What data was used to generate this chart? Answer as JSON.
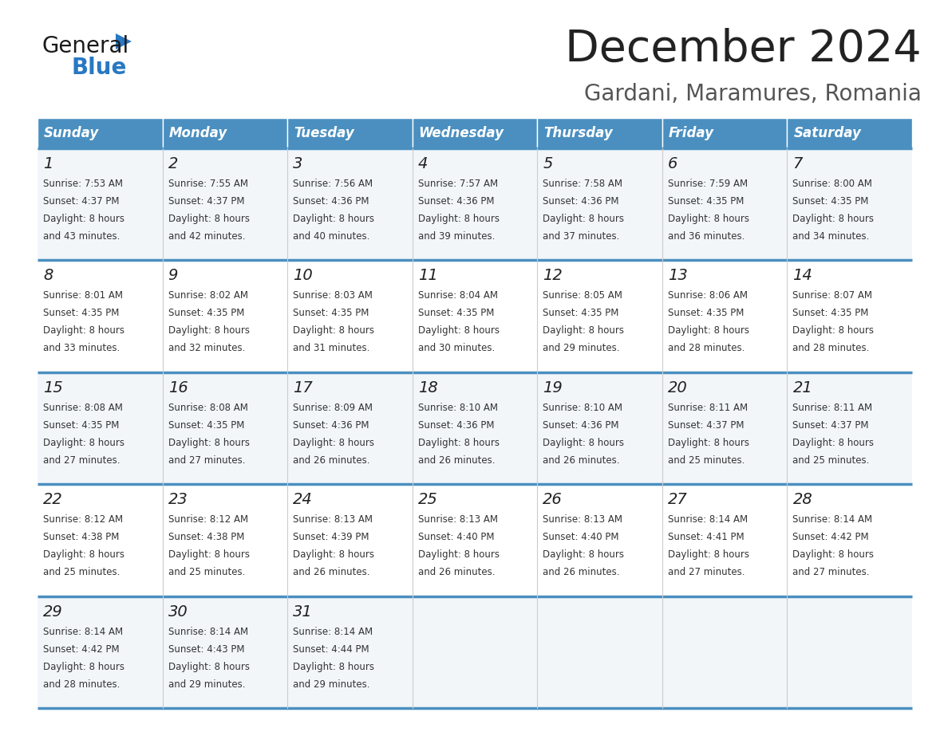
{
  "title": "December 2024",
  "subtitle": "Gardani, Maramures, Romania",
  "header_bg": "#4a8fc0",
  "header_text_color": "#ffffff",
  "row_bg_light": "#f2f6f9",
  "row_bg_white": "#ffffff",
  "border_color": "#4a8fc0",
  "day_headers": [
    "Sunday",
    "Monday",
    "Tuesday",
    "Wednesday",
    "Thursday",
    "Friday",
    "Saturday"
  ],
  "days": [
    {
      "day": 1,
      "col": 0,
      "row": 0,
      "sunrise": "7:53 AM",
      "sunset": "4:37 PM",
      "dl_min": 43
    },
    {
      "day": 2,
      "col": 1,
      "row": 0,
      "sunrise": "7:55 AM",
      "sunset": "4:37 PM",
      "dl_min": 42
    },
    {
      "day": 3,
      "col": 2,
      "row": 0,
      "sunrise": "7:56 AM",
      "sunset": "4:36 PM",
      "dl_min": 40
    },
    {
      "day": 4,
      "col": 3,
      "row": 0,
      "sunrise": "7:57 AM",
      "sunset": "4:36 PM",
      "dl_min": 39
    },
    {
      "day": 5,
      "col": 4,
      "row": 0,
      "sunrise": "7:58 AM",
      "sunset": "4:36 PM",
      "dl_min": 37
    },
    {
      "day": 6,
      "col": 5,
      "row": 0,
      "sunrise": "7:59 AM",
      "sunset": "4:35 PM",
      "dl_min": 36
    },
    {
      "day": 7,
      "col": 6,
      "row": 0,
      "sunrise": "8:00 AM",
      "sunset": "4:35 PM",
      "dl_min": 34
    },
    {
      "day": 8,
      "col": 0,
      "row": 1,
      "sunrise": "8:01 AM",
      "sunset": "4:35 PM",
      "dl_min": 33
    },
    {
      "day": 9,
      "col": 1,
      "row": 1,
      "sunrise": "8:02 AM",
      "sunset": "4:35 PM",
      "dl_min": 32
    },
    {
      "day": 10,
      "col": 2,
      "row": 1,
      "sunrise": "8:03 AM",
      "sunset": "4:35 PM",
      "dl_min": 31
    },
    {
      "day": 11,
      "col": 3,
      "row": 1,
      "sunrise": "8:04 AM",
      "sunset": "4:35 PM",
      "dl_min": 30
    },
    {
      "day": 12,
      "col": 4,
      "row": 1,
      "sunrise": "8:05 AM",
      "sunset": "4:35 PM",
      "dl_min": 29
    },
    {
      "day": 13,
      "col": 5,
      "row": 1,
      "sunrise": "8:06 AM",
      "sunset": "4:35 PM",
      "dl_min": 28
    },
    {
      "day": 14,
      "col": 6,
      "row": 1,
      "sunrise": "8:07 AM",
      "sunset": "4:35 PM",
      "dl_min": 28
    },
    {
      "day": 15,
      "col": 0,
      "row": 2,
      "sunrise": "8:08 AM",
      "sunset": "4:35 PM",
      "dl_min": 27
    },
    {
      "day": 16,
      "col": 1,
      "row": 2,
      "sunrise": "8:08 AM",
      "sunset": "4:35 PM",
      "dl_min": 27
    },
    {
      "day": 17,
      "col": 2,
      "row": 2,
      "sunrise": "8:09 AM",
      "sunset": "4:36 PM",
      "dl_min": 26
    },
    {
      "day": 18,
      "col": 3,
      "row": 2,
      "sunrise": "8:10 AM",
      "sunset": "4:36 PM",
      "dl_min": 26
    },
    {
      "day": 19,
      "col": 4,
      "row": 2,
      "sunrise": "8:10 AM",
      "sunset": "4:36 PM",
      "dl_min": 26
    },
    {
      "day": 20,
      "col": 5,
      "row": 2,
      "sunrise": "8:11 AM",
      "sunset": "4:37 PM",
      "dl_min": 25
    },
    {
      "day": 21,
      "col": 6,
      "row": 2,
      "sunrise": "8:11 AM",
      "sunset": "4:37 PM",
      "dl_min": 25
    },
    {
      "day": 22,
      "col": 0,
      "row": 3,
      "sunrise": "8:12 AM",
      "sunset": "4:38 PM",
      "dl_min": 25
    },
    {
      "day": 23,
      "col": 1,
      "row": 3,
      "sunrise": "8:12 AM",
      "sunset": "4:38 PM",
      "dl_min": 25
    },
    {
      "day": 24,
      "col": 2,
      "row": 3,
      "sunrise": "8:13 AM",
      "sunset": "4:39 PM",
      "dl_min": 26
    },
    {
      "day": 25,
      "col": 3,
      "row": 3,
      "sunrise": "8:13 AM",
      "sunset": "4:40 PM",
      "dl_min": 26
    },
    {
      "day": 26,
      "col": 4,
      "row": 3,
      "sunrise": "8:13 AM",
      "sunset": "4:40 PM",
      "dl_min": 26
    },
    {
      "day": 27,
      "col": 5,
      "row": 3,
      "sunrise": "8:14 AM",
      "sunset": "4:41 PM",
      "dl_min": 27
    },
    {
      "day": 28,
      "col": 6,
      "row": 3,
      "sunrise": "8:14 AM",
      "sunset": "4:42 PM",
      "dl_min": 27
    },
    {
      "day": 29,
      "col": 0,
      "row": 4,
      "sunrise": "8:14 AM",
      "sunset": "4:42 PM",
      "dl_min": 28
    },
    {
      "day": 30,
      "col": 1,
      "row": 4,
      "sunrise": "8:14 AM",
      "sunset": "4:43 PM",
      "dl_min": 29
    },
    {
      "day": 31,
      "col": 2,
      "row": 4,
      "sunrise": "8:14 AM",
      "sunset": "4:44 PM",
      "dl_min": 29
    }
  ]
}
